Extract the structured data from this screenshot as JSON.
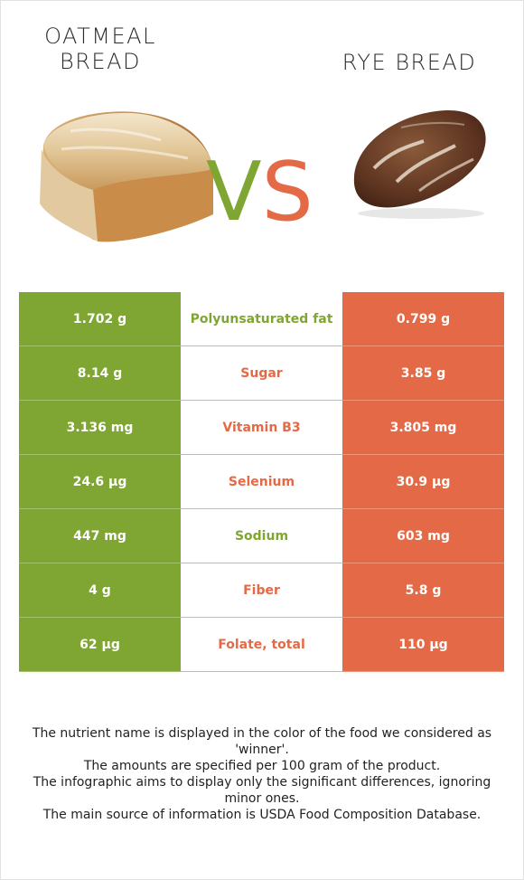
{
  "header": {
    "left_title_line1": "OATMEAL",
    "left_title_line2": "BREAD",
    "right_title": "RYE BREAD",
    "vs_v": "V",
    "vs_s": "S"
  },
  "colors": {
    "left_food": "#7fa632",
    "right_food": "#e46a47"
  },
  "rows": [
    {
      "left": "1.702 g",
      "nutrient": "Polyunsaturated fat",
      "right": "0.799 g",
      "winner": "left"
    },
    {
      "left": "8.14 g",
      "nutrient": "Sugar",
      "right": "3.85 g",
      "winner": "right"
    },
    {
      "left": "3.136 mg",
      "nutrient": "Vitamin B3",
      "right": "3.805 mg",
      "winner": "right"
    },
    {
      "left": "24.6 µg",
      "nutrient": "Selenium",
      "right": "30.9 µg",
      "winner": "right"
    },
    {
      "left": "447 mg",
      "nutrient": "Sodium",
      "right": "603 mg",
      "winner": "left"
    },
    {
      "left": "4 g",
      "nutrient": "Fiber",
      "right": "5.8 g",
      "winner": "right"
    },
    {
      "left": "62 µg",
      "nutrient": "Folate, total",
      "right": "110 µg",
      "winner": "right"
    }
  ],
  "footer": {
    "line1": "The nutrient name is displayed in the color of the food we considered as 'winner'.",
    "line2": "The amounts are specified per 100 gram of the product.",
    "line3": "The infographic aims to display only the significant differences, ignoring minor ones.",
    "line4": "The main source of information is USDA Food Composition Database."
  }
}
